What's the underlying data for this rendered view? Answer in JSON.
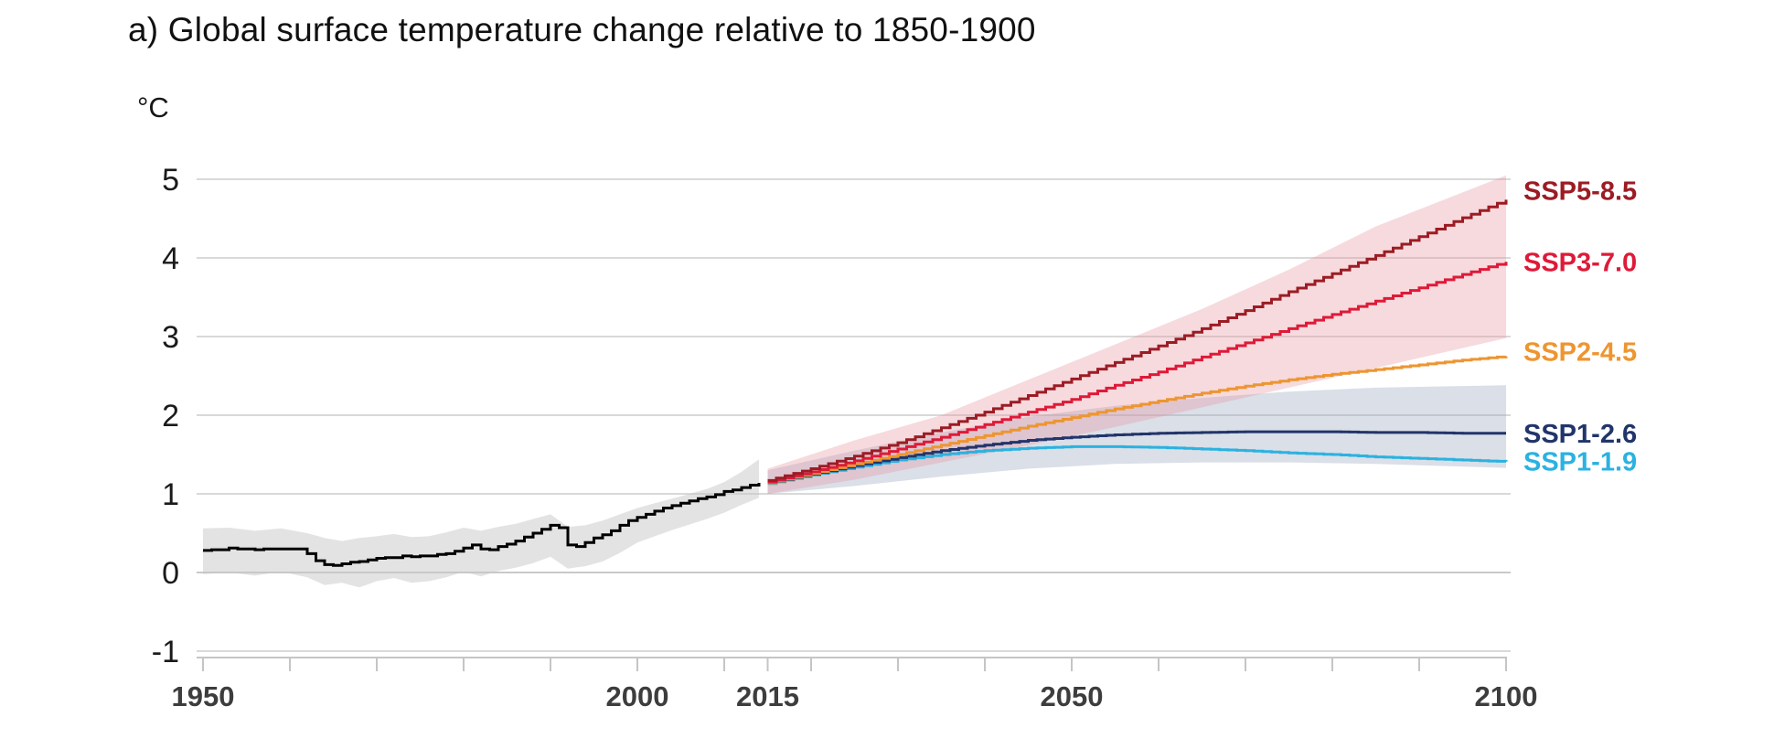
{
  "title": "a) Global surface temperature change relative to 1850-1900",
  "unit": "°C",
  "chart_data": {
    "type": "line",
    "title": "a) Global surface temperature change relative to 1850-1900",
    "ylabel": "°C",
    "xlabel": "",
    "ylim": [
      -1,
      5
    ],
    "xlim": [
      1950,
      2108
    ],
    "grid": "horizontal",
    "legend_position": "right-edge-labels",
    "y_ticks": [
      5,
      4,
      3,
      2,
      1,
      0,
      -1
    ],
    "x_ticks": [
      1950,
      2000,
      2015,
      2050,
      2100
    ],
    "x_minor_ticks": [
      1950,
      1960,
      1970,
      1980,
      1990,
      2000,
      2010,
      2015,
      2020,
      2030,
      2040,
      2050,
      2060,
      2070,
      2080,
      2090,
      2100
    ],
    "colors": {
      "gridline": "#d9d9d9",
      "gridline_zero": "#c9c9c9",
      "axis": "#c5c5c5",
      "tick_label_x": "#3d3d3d",
      "tick_label_y": "#1a1a1a",
      "historical_line": "#000000",
      "historical_band": "rgba(200,200,200,0.5)"
    },
    "historical": {
      "name": "historical",
      "color": "#000000",
      "years": [
        1950,
        1951,
        1952,
        1953,
        1954,
        1955,
        1956,
        1957,
        1958,
        1959,
        1960,
        1961,
        1962,
        1963,
        1964,
        1965,
        1966,
        1967,
        1968,
        1969,
        1970,
        1971,
        1972,
        1973,
        1974,
        1975,
        1976,
        1977,
        1978,
        1979,
        1980,
        1981,
        1982,
        1983,
        1984,
        1985,
        1986,
        1987,
        1988,
        1989,
        1990,
        1991,
        1992,
        1993,
        1994,
        1995,
        1996,
        1997,
        1998,
        1999,
        2000,
        2001,
        2002,
        2003,
        2004,
        2005,
        2006,
        2007,
        2008,
        2009,
        2010,
        2011,
        2012,
        2013,
        2014
      ],
      "values": [
        0.28,
        0.29,
        0.29,
        0.31,
        0.3,
        0.3,
        0.29,
        0.3,
        0.3,
        0.3,
        0.3,
        0.3,
        0.24,
        0.15,
        0.1,
        0.09,
        0.11,
        0.13,
        0.14,
        0.16,
        0.18,
        0.19,
        0.19,
        0.21,
        0.2,
        0.21,
        0.21,
        0.23,
        0.24,
        0.27,
        0.31,
        0.35,
        0.3,
        0.29,
        0.33,
        0.36,
        0.4,
        0.45,
        0.5,
        0.55,
        0.6,
        0.57,
        0.35,
        0.33,
        0.38,
        0.44,
        0.48,
        0.53,
        0.6,
        0.66,
        0.7,
        0.74,
        0.78,
        0.82,
        0.85,
        0.88,
        0.91,
        0.94,
        0.96,
        0.99,
        1.03,
        1.05,
        1.08,
        1.11,
        1.14
      ],
      "band": {
        "fill": "rgba(200,200,200,0.5)",
        "years": [
          1950,
          1953,
          1956,
          1959,
          1962,
          1964,
          1966,
          1968,
          1970,
          1972,
          1974,
          1976,
          1978,
          1980,
          1982,
          1984,
          1986,
          1988,
          1990,
          1992,
          1994,
          1996,
          1998,
          2000,
          2002,
          2004,
          2006,
          2008,
          2010,
          2012,
          2014
        ],
        "upper": [
          0.56,
          0.57,
          0.53,
          0.56,
          0.5,
          0.44,
          0.4,
          0.44,
          0.46,
          0.49,
          0.45,
          0.46,
          0.51,
          0.57,
          0.53,
          0.58,
          0.62,
          0.68,
          0.74,
          0.58,
          0.6,
          0.66,
          0.74,
          0.82,
          0.88,
          0.94,
          1.0,
          1.06,
          1.15,
          1.28,
          1.44
        ],
        "lower": [
          -0.02,
          0.0,
          -0.04,
          0.01,
          -0.06,
          -0.16,
          -0.13,
          -0.19,
          -0.11,
          -0.07,
          -0.13,
          -0.11,
          -0.06,
          0.01,
          -0.05,
          0.02,
          0.06,
          0.12,
          0.2,
          0.05,
          0.08,
          0.14,
          0.25,
          0.38,
          0.46,
          0.54,
          0.61,
          0.68,
          0.76,
          0.86,
          0.95
        ]
      }
    },
    "scenario_years": [
      2015,
      2020,
      2025,
      2030,
      2035,
      2040,
      2045,
      2050,
      2055,
      2060,
      2065,
      2070,
      2075,
      2080,
      2085,
      2090,
      2095,
      2100
    ],
    "scenarios": [
      {
        "name": "SSP1-1.9",
        "color": "#2bb2e0",
        "values": [
          1.13,
          1.24,
          1.34,
          1.43,
          1.5,
          1.55,
          1.58,
          1.6,
          1.6,
          1.59,
          1.57,
          1.55,
          1.52,
          1.5,
          1.47,
          1.45,
          1.43,
          1.41
        ]
      },
      {
        "name": "SSP1-2.6",
        "color": "#22356a",
        "values": [
          1.14,
          1.25,
          1.36,
          1.46,
          1.55,
          1.62,
          1.68,
          1.72,
          1.75,
          1.77,
          1.78,
          1.79,
          1.79,
          1.79,
          1.78,
          1.78,
          1.77,
          1.77
        ],
        "band": {
          "fill": "rgba(148,163,190,0.35)",
          "years": [
            2015,
            2025,
            2035,
            2045,
            2055,
            2065,
            2075,
            2085,
            2100
          ],
          "upper": [
            1.3,
            1.55,
            1.78,
            1.98,
            2.12,
            2.22,
            2.3,
            2.35,
            2.38
          ],
          "lower": [
            1.0,
            1.1,
            1.22,
            1.32,
            1.38,
            1.4,
            1.4,
            1.38,
            1.33
          ]
        }
      },
      {
        "name": "SSP2-4.5",
        "color": "#ee9530",
        "values": [
          1.14,
          1.26,
          1.38,
          1.5,
          1.62,
          1.74,
          1.86,
          1.97,
          2.08,
          2.18,
          2.28,
          2.37,
          2.45,
          2.52,
          2.58,
          2.64,
          2.7,
          2.75
        ]
      },
      {
        "name": "SSP3-7.0",
        "color": "#de1a38",
        "values": [
          1.15,
          1.28,
          1.42,
          1.57,
          1.72,
          1.88,
          2.04,
          2.2,
          2.38,
          2.55,
          2.74,
          2.92,
          3.1,
          3.28,
          3.45,
          3.62,
          3.79,
          3.95
        ],
        "band": {
          "fill": "rgba(228,148,160,0.35)",
          "years": [
            2015,
            2025,
            2035,
            2045,
            2055,
            2065,
            2075,
            2085,
            2100
          ],
          "upper": [
            1.32,
            1.68,
            2.0,
            2.45,
            2.9,
            3.35,
            3.85,
            4.4,
            5.05
          ],
          "lower": [
            1.0,
            1.18,
            1.4,
            1.62,
            1.85,
            2.1,
            2.35,
            2.6,
            2.98
          ]
        }
      },
      {
        "name": "SSP5-8.5",
        "color": "#9c1c24",
        "values": [
          1.17,
          1.32,
          1.48,
          1.65,
          1.84,
          2.04,
          2.25,
          2.46,
          2.67,
          2.88,
          3.1,
          3.33,
          3.57,
          3.8,
          4.03,
          4.27,
          4.51,
          4.74
        ]
      }
    ]
  }
}
